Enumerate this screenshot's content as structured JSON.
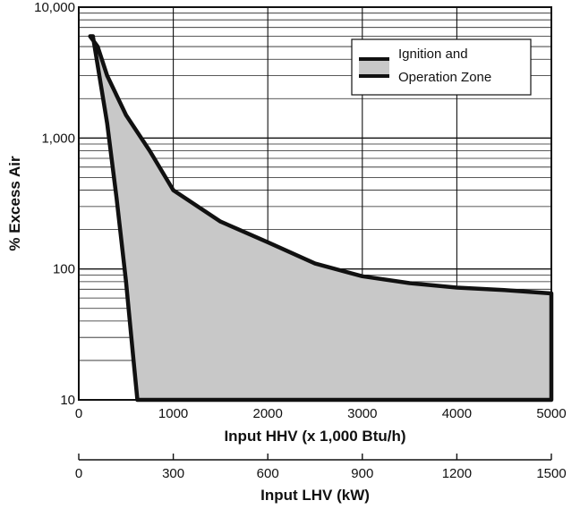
{
  "chart_data": {
    "type": "area",
    "x_scale": "linear",
    "y_scale": "log",
    "xlim": [
      0,
      5000
    ],
    "ylim": [
      10,
      10000
    ],
    "grid": true,
    "x_ticks": [
      0,
      1000,
      2000,
      3000,
      4000,
      5000
    ],
    "x_tick_labels": [
      "0",
      "1000",
      "2000",
      "3000",
      "4000",
      "5000"
    ],
    "y_ticks": [
      10,
      100,
      1000,
      10000
    ],
    "y_tick_labels": [
      "10",
      "100",
      "1,000",
      "10,000"
    ],
    "xlabel": "Input HHV (x 1,000 Btu/h)",
    "ylabel": "% Excess Air",
    "secondary_x_axis": {
      "label": "Input LHV (kW)",
      "ticks": [
        0,
        300,
        600,
        900,
        1200,
        1500
      ],
      "tick_labels": [
        "0",
        "300",
        "600",
        "900",
        "1200",
        "1500"
      ],
      "lim": [
        0,
        1500
      ]
    },
    "legend": {
      "placement": "top-right",
      "entry_line1": "Ignition and",
      "entry_line2": "Operation Zone"
    },
    "fill_color": "#c8c8c8",
    "edge_color": "#111111",
    "series": [
      {
        "name": "Ignition and Operation Zone",
        "upper_boundary": [
          {
            "x": 120,
            "y": 6000
          },
          {
            "x": 200,
            "y": 5000
          },
          {
            "x": 300,
            "y": 3000
          },
          {
            "x": 500,
            "y": 1500
          },
          {
            "x": 750,
            "y": 800
          },
          {
            "x": 1000,
            "y": 400
          },
          {
            "x": 1500,
            "y": 230
          },
          {
            "x": 2000,
            "y": 160
          },
          {
            "x": 2500,
            "y": 110
          },
          {
            "x": 3000,
            "y": 88
          },
          {
            "x": 3500,
            "y": 78
          },
          {
            "x": 4000,
            "y": 72
          },
          {
            "x": 4500,
            "y": 69
          },
          {
            "x": 5000,
            "y": 65
          }
        ],
        "lower_boundary": [
          {
            "x": 150,
            "y": 6000
          },
          {
            "x": 300,
            "y": 1300
          },
          {
            "x": 400,
            "y": 350
          },
          {
            "x": 500,
            "y": 80
          },
          {
            "x": 580,
            "y": 20
          },
          {
            "x": 620,
            "y": 10
          },
          {
            "x": 5000,
            "y": 10
          }
        ]
      }
    ]
  }
}
